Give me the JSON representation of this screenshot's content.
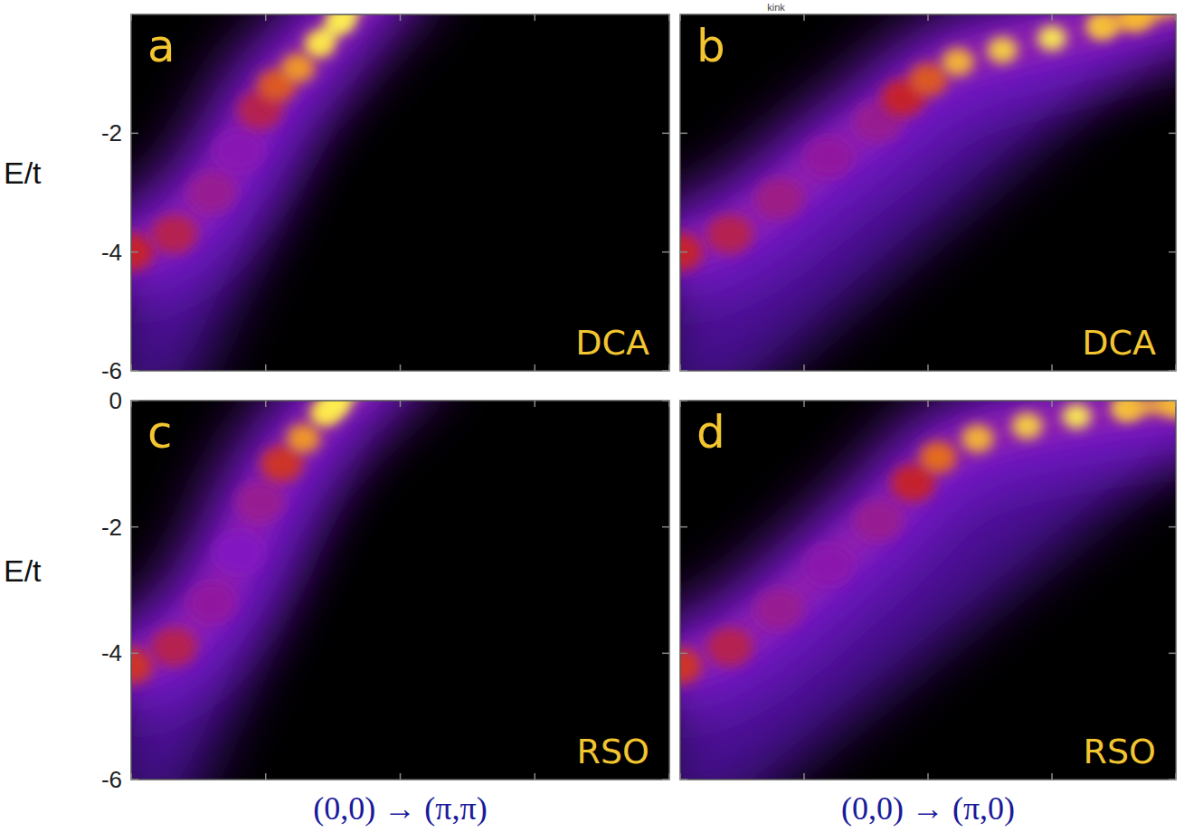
{
  "chart_data": [
    {
      "type": "spectral",
      "panel": "a",
      "method": "DCA",
      "ylabel": "E/t",
      "x": [
        0,
        0.08,
        0.15,
        0.2,
        0.24,
        0.27,
        0.31,
        0.35,
        0.39
      ],
      "values": [
        -4.0,
        -3.7,
        -3.0,
        -2.3,
        -1.6,
        -1.2,
        -0.9,
        -0.5,
        -0.1
      ],
      "intensity": [
        0.55,
        0.5,
        0.4,
        0.35,
        0.5,
        0.7,
        0.85,
        0.95,
        1.0
      ],
      "xlim": [
        0,
        1
      ],
      "ylim": [
        -6,
        0
      ],
      "xticks": [
        0,
        0.25,
        0.5,
        0.75,
        1
      ],
      "yticks": [
        -2,
        -4,
        -6
      ],
      "tick_labels": "y"
    },
    {
      "type": "spectral",
      "panel": "b",
      "method": "DCA",
      "annotation": "kink",
      "x": [
        0,
        0.1,
        0.2,
        0.3,
        0.4,
        0.45,
        0.5,
        0.56,
        0.65,
        0.75,
        0.85,
        0.92
      ],
      "values": [
        -4.0,
        -3.7,
        -3.1,
        -2.4,
        -1.8,
        -1.4,
        -1.1,
        -0.8,
        -0.6,
        -0.4,
        -0.2,
        -0.05
      ],
      "intensity": [
        0.55,
        0.5,
        0.42,
        0.38,
        0.4,
        0.55,
        0.7,
        0.9,
        0.95,
        1.0,
        0.95,
        0.9
      ],
      "xlim": [
        0,
        1
      ],
      "ylim": [
        -6,
        0
      ],
      "xticks": [
        0,
        0.25,
        0.5,
        0.75,
        1
      ],
      "yticks": [
        -2,
        -4,
        -6
      ],
      "tick_labels": false
    },
    {
      "type": "spectral",
      "panel": "c",
      "method": "RSO",
      "ylabel": "E/t",
      "xlabel": "(0,0) → (π,π)",
      "x": [
        0,
        0.08,
        0.15,
        0.2,
        0.24,
        0.28,
        0.32,
        0.36,
        0.38
      ],
      "values": [
        -4.2,
        -3.9,
        -3.2,
        -2.4,
        -1.6,
        -1.0,
        -0.6,
        -0.2,
        -0.05
      ],
      "intensity": [
        0.6,
        0.5,
        0.38,
        0.33,
        0.4,
        0.6,
        0.85,
        0.95,
        1.0
      ],
      "xlim": [
        0,
        1
      ],
      "ylim": [
        -6,
        0
      ],
      "xticks": [
        0,
        0.25,
        0.5,
        0.75,
        1
      ],
      "yticks": [
        0,
        -2,
        -4,
        -6
      ],
      "tick_labels": "y"
    },
    {
      "type": "spectral",
      "panel": "d",
      "method": "RSO",
      "xlabel": "(0,0) → (π,0)",
      "x": [
        0,
        0.1,
        0.2,
        0.3,
        0.4,
        0.47,
        0.52,
        0.6,
        0.7,
        0.8,
        0.9,
        1.0
      ],
      "values": [
        -4.2,
        -3.9,
        -3.3,
        -2.6,
        -1.9,
        -1.3,
        -0.9,
        -0.6,
        -0.4,
        -0.25,
        -0.12,
        -0.05
      ],
      "intensity": [
        0.6,
        0.5,
        0.4,
        0.36,
        0.4,
        0.55,
        0.75,
        0.9,
        0.95,
        1.0,
        0.95,
        0.9
      ],
      "xlim": [
        0,
        1
      ],
      "ylim": [
        -6,
        0
      ],
      "xticks": [
        0,
        0.25,
        0.5,
        0.75,
        1
      ],
      "yticks": [
        0,
        -2,
        -4,
        -6
      ],
      "tick_labels": false
    }
  ]
}
